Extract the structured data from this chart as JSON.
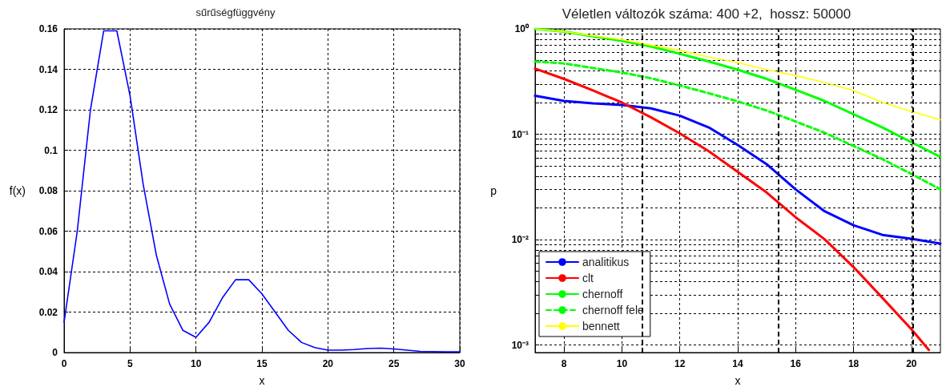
{
  "chart_data": [
    {
      "type": "line",
      "title": "sűrűségfüggvény",
      "xlabel": "x",
      "ylabel": "f(x)",
      "xlim": [
        0,
        30
      ],
      "xticks": [
        0,
        5,
        10,
        15,
        20,
        25,
        30
      ],
      "ylim": [
        0,
        0.16
      ],
      "yticks": [
        0,
        0.02,
        0.04,
        0.06,
        0.08,
        0.1,
        0.12,
        0.14,
        0.16
      ],
      "grid": true,
      "legend": false,
      "marker": "none",
      "x": [
        0,
        1,
        2,
        3,
        4,
        5,
        6,
        7,
        8,
        9,
        10,
        11,
        12,
        13,
        14,
        15,
        16,
        17,
        18,
        19,
        20,
        21,
        22,
        23,
        24,
        25,
        26,
        27,
        28,
        29,
        30
      ],
      "series": [
        {
          "color": "#0000ff",
          "values": [
            0.015,
            0.06,
            0.12,
            0.159,
            0.159,
            0.127,
            0.083,
            0.048,
            0.024,
            0.011,
            0.0075,
            0.015,
            0.027,
            0.036,
            0.036,
            0.029,
            0.02,
            0.011,
            0.005,
            0.0025,
            0.0012,
            0.0012,
            0.0015,
            0.002,
            0.0022,
            0.0018,
            0.0012,
            0.0006,
            0.0005,
            0.0004,
            0.0004
          ]
        }
      ]
    },
    {
      "type": "line",
      "title": "Véletlen változók száma: 400 +2,  hossz: 50000",
      "xlabel": "x",
      "ylabel": "p",
      "log": "y",
      "xlim": [
        7,
        21
      ],
      "xticks": [
        8,
        10,
        12,
        14,
        16,
        18,
        20
      ],
      "ylim": [
        0.00085,
        1
      ],
      "yticks": [
        {
          "value": 0.001,
          "label": "10⁻³"
        },
        {
          "value": 0.002,
          "label": null
        },
        {
          "value": 0.003,
          "label": null
        },
        {
          "value": 0.004,
          "label": null
        },
        {
          "value": 0.005,
          "label": null
        },
        {
          "value": 0.006,
          "label": null
        },
        {
          "value": 0.007,
          "label": null
        },
        {
          "value": 0.008,
          "label": null
        },
        {
          "value": 0.009,
          "label": null
        },
        {
          "value": 0.01,
          "label": "10⁻²"
        },
        {
          "value": 0.02,
          "label": null
        },
        {
          "value": 0.03,
          "label": null
        },
        {
          "value": 0.04,
          "label": null
        },
        {
          "value": 0.05,
          "label": null
        },
        {
          "value": 0.06,
          "label": null
        },
        {
          "value": 0.07,
          "label": null
        },
        {
          "value": 0.08,
          "label": null
        },
        {
          "value": 0.09,
          "label": null
        },
        {
          "value": 0.1,
          "label": "10⁻¹"
        },
        {
          "value": 0.2,
          "label": null
        },
        {
          "value": 0.3,
          "label": null
        },
        {
          "value": 0.4,
          "label": null
        },
        {
          "value": 0.5,
          "label": null
        },
        {
          "value": 0.6,
          "label": null
        },
        {
          "value": 0.7,
          "label": null
        },
        {
          "value": 0.8,
          "label": null
        },
        {
          "value": 0.9,
          "label": null
        },
        {
          "value": 1,
          "label": "10⁰"
        }
      ],
      "grid": true,
      "legend": "bottom left",
      "marker": "none",
      "x": [
        7,
        8,
        9,
        10,
        11,
        12,
        13,
        14,
        15,
        16,
        17,
        18,
        19,
        20,
        21
      ],
      "series": [
        {
          "name": "analitikus",
          "color": "#0000ff",
          "values": [
            0.232,
            0.207,
            0.196,
            0.19,
            0.176,
            0.15,
            0.116,
            0.079,
            0.052,
            0.03,
            0.0186,
            0.0137,
            0.0111,
            0.0102,
            0.0092
          ]
        },
        {
          "name": "clt",
          "color": "#ff0000",
          "x": [
            7,
            8,
            9,
            10,
            11,
            12,
            13,
            14,
            15,
            16,
            17,
            18,
            19,
            20,
            20.6
          ],
          "values": [
            0.42,
            0.335,
            0.26,
            0.2,
            0.145,
            0.102,
            0.069,
            0.044,
            0.028,
            0.0163,
            0.0101,
            0.0055,
            0.0028,
            0.00141,
            0.0009
          ]
        },
        {
          "name": "chernoff",
          "color": "#00ff00",
          "values": [
            1.0,
            0.94,
            0.85,
            0.77,
            0.68,
            0.58,
            0.49,
            0.41,
            0.335,
            0.264,
            0.207,
            0.155,
            0.116,
            0.084,
            0.061
          ]
        },
        {
          "name": "chernoff fele",
          "color": "#00ff00",
          "line_style": "dashed",
          "values": [
            0.49,
            0.47,
            0.425,
            0.385,
            0.34,
            0.29,
            0.245,
            0.205,
            0.168,
            0.132,
            0.1035,
            0.0775,
            0.058,
            0.042,
            0.03
          ]
        },
        {
          "name": "bennett",
          "color": "#ffff00",
          "values": [
            1.0,
            0.94,
            0.86,
            0.79,
            0.7,
            0.625,
            0.54,
            0.48,
            0.41,
            0.36,
            0.31,
            0.26,
            0.2,
            0.165,
            0.137
          ]
        }
      ],
      "ref_lines": [
        {
          "axis": "x",
          "value": 10.7,
          "color": "#000000",
          "line_style": "dashed"
        },
        {
          "axis": "x",
          "value": 15.4,
          "color": "#000000",
          "line_style": "dashed"
        },
        {
          "axis": "x",
          "value": 20.05,
          "color": "#000000",
          "line_style": "dashed"
        }
      ]
    }
  ]
}
